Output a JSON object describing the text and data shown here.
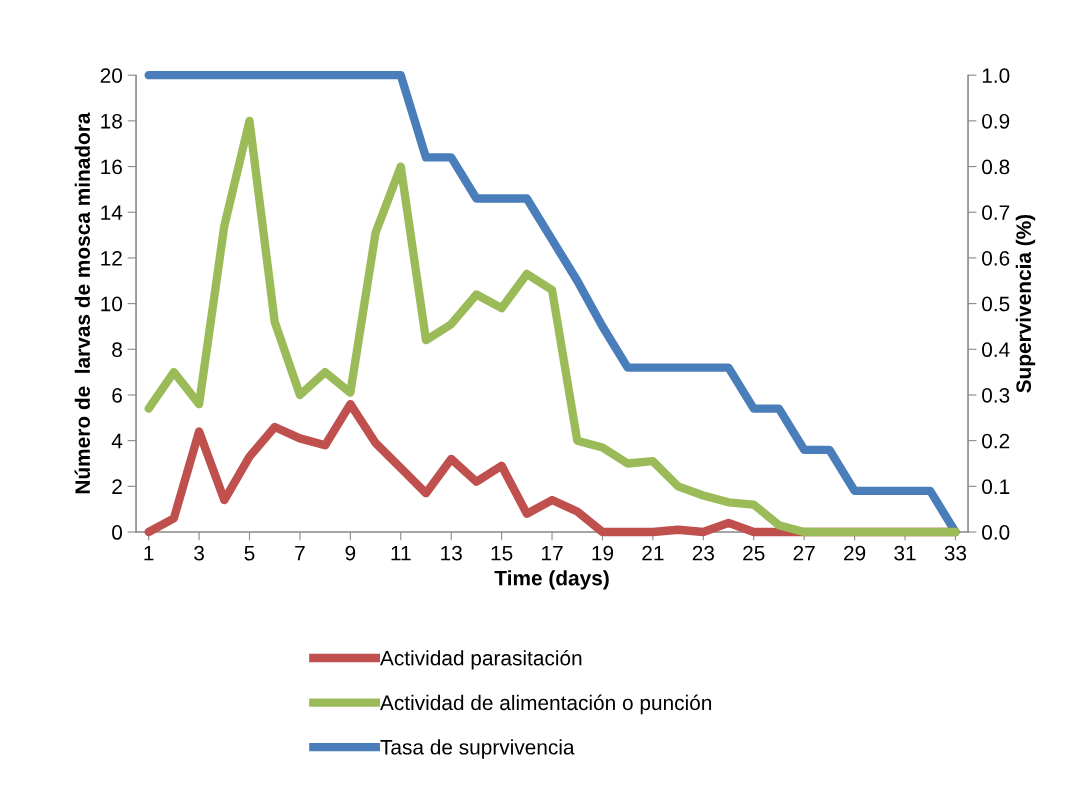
{
  "chart_data": {
    "type": "line",
    "xlabel": "Time (days)",
    "ylabel": "Número de  larvas de mosca minadora",
    "y2label": "Supervivencia (%)",
    "x": [
      1,
      2,
      3,
      4,
      5,
      6,
      7,
      8,
      9,
      10,
      11,
      12,
      13,
      14,
      15,
      16,
      17,
      18,
      19,
      20,
      21,
      22,
      23,
      24,
      25,
      26,
      27,
      28,
      29,
      30,
      31,
      32,
      33
    ],
    "xlim": [
      0.5,
      33.5
    ],
    "xticks": [
      1,
      3,
      5,
      7,
      9,
      11,
      13,
      15,
      17,
      19,
      21,
      23,
      25,
      27,
      29,
      31,
      33
    ],
    "ylim": [
      0,
      20
    ],
    "yticks": [
      0,
      2,
      4,
      6,
      8,
      10,
      12,
      14,
      16,
      18,
      20
    ],
    "y2lim": [
      0,
      1
    ],
    "y2ticks": [
      {
        "value": 0,
        "label": "0.0"
      },
      {
        "value": 0.1,
        "label": "0.1"
      },
      {
        "value": 0.2,
        "label": "0.2"
      },
      {
        "value": 0.3,
        "label": "0.3"
      },
      {
        "value": 0.4,
        "label": "0.4"
      },
      {
        "value": 0.5,
        "label": "0.5"
      },
      {
        "value": 0.6,
        "label": "0.6"
      },
      {
        "value": 0.7,
        "label": "0.7"
      },
      {
        "value": 0.8,
        "label": "0.8"
      },
      {
        "value": 0.9,
        "label": "0.9"
      },
      {
        "value": 1,
        "label": "1.0"
      }
    ],
    "grid": false,
    "legend": "bottom",
    "marker": "none",
    "line_style": "solid",
    "series": [
      {
        "name": "Actividad parasitación",
        "color": "#c0504d",
        "values": [
          0,
          0.6,
          4.4,
          1.4,
          3.3,
          4.6,
          4.1,
          3.8,
          5.6,
          3.9,
          2.8,
          1.7,
          3.2,
          2.2,
          2.9,
          0.8,
          1.4,
          0.9,
          0,
          0,
          0,
          0.1,
          0,
          0.4,
          0,
          0,
          0,
          0,
          0,
          0,
          0,
          0,
          0
        ]
      },
      {
        "name": "Actividad de alimentación o punción",
        "color": "#9bbb59",
        "values": [
          5.4,
          7.0,
          5.6,
          13.4,
          18,
          9.2,
          6.0,
          7.0,
          6.1,
          13.1,
          16,
          8.4,
          9.1,
          10.4,
          9.8,
          11.3,
          10.6,
          4.0,
          3.7,
          3.0,
          3.1,
          2.0,
          1.6,
          1.3,
          1.2,
          0.3,
          0,
          0,
          0,
          0,
          0,
          0,
          0
        ]
      },
      {
        "name": "Tasa de suprvivencia",
        "color": "#4a7ebb",
        "axis": "y2",
        "values": [
          1,
          1,
          1,
          1,
          1,
          1,
          1,
          1,
          1,
          1,
          1,
          0.82,
          0.82,
          0.73,
          0.73,
          0.73,
          0.64,
          0.55,
          0.45,
          0.36,
          0.36,
          0.36,
          0.36,
          0.36,
          0.27,
          0.27,
          0.18,
          0.18,
          0.09,
          0.09,
          0.09,
          0.09,
          0
        ]
      }
    ]
  }
}
